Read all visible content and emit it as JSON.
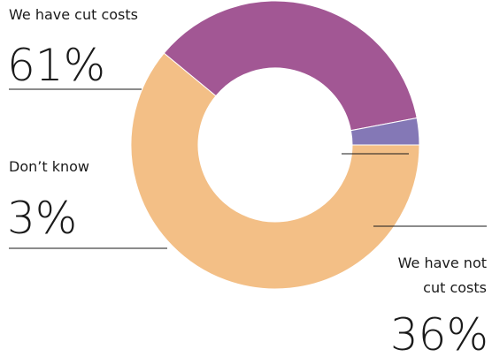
{
  "chart_data": {
    "type": "pie",
    "donut": true,
    "slices": [
      {
        "label": "We have cut costs",
        "value": 61,
        "value_text": "61%",
        "color": "#f3bf86"
      },
      {
        "label": "We have not cut costs",
        "value": 36,
        "value_text": "36%",
        "color": "#a25794"
      },
      {
        "label": "Don’t know",
        "value": 3,
        "value_text": "3%",
        "color": "#8478b6"
      }
    ],
    "label_lines": {
      "not_cut_line1": "We have not",
      "not_cut_line2": "cut costs"
    }
  }
}
